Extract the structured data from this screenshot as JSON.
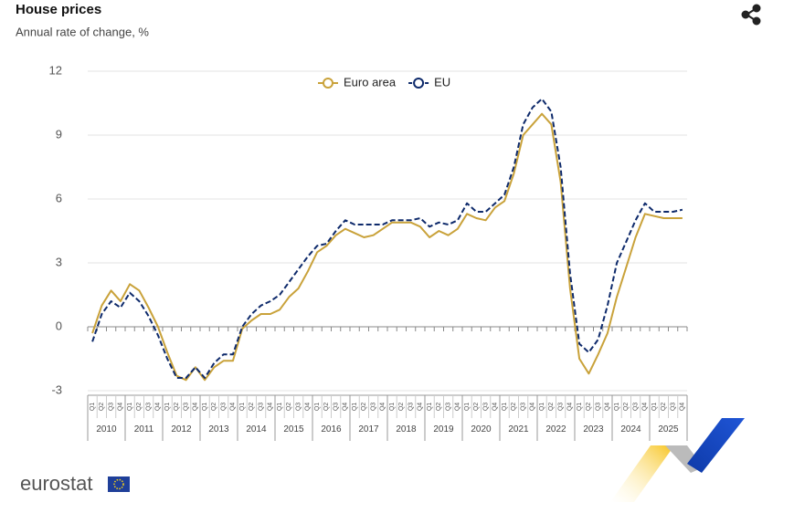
{
  "chart_data": {
    "type": "line",
    "title": "House prices",
    "subtitle": "Annual rate of change, %",
    "categories": [
      "Q1",
      "Q2",
      "Q3",
      "Q4",
      "Q1",
      "Q2",
      "Q3",
      "Q4",
      "Q1",
      "Q2",
      "Q3",
      "Q4",
      "Q1",
      "Q2",
      "Q3",
      "Q4",
      "Q1",
      "Q2",
      "Q3",
      "Q4",
      "Q1",
      "Q2",
      "Q3",
      "Q4",
      "Q1",
      "Q2",
      "Q3",
      "Q4",
      "Q1",
      "Q2",
      "Q3",
      "Q4",
      "Q1",
      "Q2",
      "Q3",
      "Q4",
      "Q1",
      "Q2",
      "Q3",
      "Q4",
      "Q1",
      "Q2",
      "Q3",
      "Q4",
      "Q1",
      "Q2",
      "Q3",
      "Q4",
      "Q1",
      "Q2",
      "Q3",
      "Q4",
      "Q1",
      "Q2",
      "Q3",
      "Q4",
      "Q1",
      "Q2",
      "Q3",
      "Q4",
      "Q1",
      "Q2",
      "Q3",
      "Q4"
    ],
    "year_labels": [
      "2010",
      "2011",
      "2012",
      "2013",
      "2014",
      "2015",
      "2016",
      "2017",
      "2018",
      "2019",
      "2020",
      "2021",
      "2022",
      "2023",
      "2024",
      "2025"
    ],
    "series": [
      {
        "name": "Euro area",
        "color": "#c9a23a",
        "dash": false,
        "values": [
          -0.3,
          1.0,
          1.7,
          1.2,
          2.0,
          1.7,
          0.9,
          0.0,
          -1.2,
          -2.3,
          -2.5,
          -1.9,
          -2.5,
          -1.9,
          -1.6,
          -1.6,
          -0.1,
          0.3,
          0.6,
          0.6,
          0.8,
          1.4,
          1.8,
          2.6,
          3.5,
          3.8,
          4.3,
          4.6,
          4.4,
          4.2,
          4.3,
          4.6,
          4.9,
          4.9,
          4.9,
          4.7,
          4.2,
          4.5,
          4.3,
          4.6,
          5.3,
          5.1,
          5.0,
          5.6,
          5.9,
          7.2,
          9.0,
          9.5,
          10.0,
          9.5,
          6.8,
          1.8,
          -1.5,
          -2.2,
          -1.3,
          -0.3,
          1.4,
          2.8,
          4.2,
          5.3,
          5.2,
          5.1,
          5.1,
          5.1
        ]
      },
      {
        "name": "EU",
        "color": "#0e2a6b",
        "dash": true,
        "values": [
          -0.7,
          0.6,
          1.2,
          0.9,
          1.6,
          1.2,
          0.5,
          -0.4,
          -1.5,
          -2.4,
          -2.4,
          -1.9,
          -2.4,
          -1.7,
          -1.3,
          -1.3,
          0.0,
          0.6,
          1.0,
          1.2,
          1.5,
          2.1,
          2.7,
          3.3,
          3.8,
          3.9,
          4.5,
          5.0,
          4.8,
          4.8,
          4.8,
          4.8,
          5.0,
          5.0,
          5.0,
          5.1,
          4.7,
          4.9,
          4.8,
          5.0,
          5.8,
          5.4,
          5.4,
          5.8,
          6.2,
          7.5,
          9.5,
          10.3,
          10.7,
          10.1,
          7.5,
          2.5,
          -0.8,
          -1.2,
          -0.6,
          1.0,
          3.0,
          4.0,
          5.0,
          5.8,
          5.4,
          5.4,
          5.4,
          5.5
        ]
      }
    ],
    "ylim": [
      -3,
      12
    ],
    "yticks": [
      -3,
      0,
      3,
      6,
      9,
      12
    ],
    "grid": true,
    "legend": "top",
    "logo": "eurostat"
  }
}
